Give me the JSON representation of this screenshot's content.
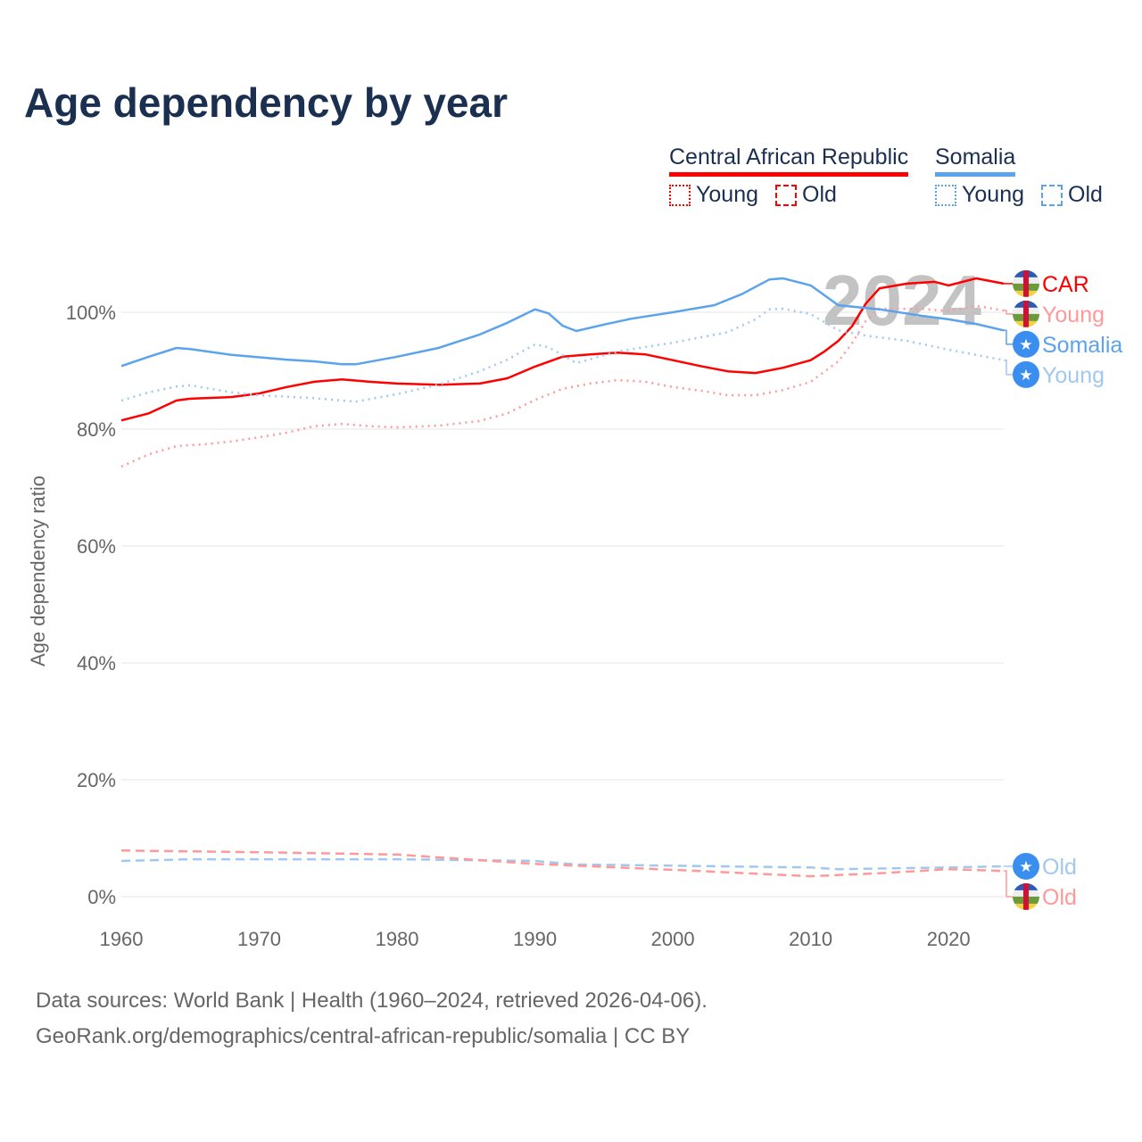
{
  "title": "Age dependency by year",
  "legend": {
    "countries": [
      {
        "name": "Central African Republic",
        "color": "#ff0000",
        "young_label": "Young",
        "old_label": "Old"
      },
      {
        "name": "Somalia",
        "color": "#5ba3ec",
        "young_label": "Young",
        "old_label": "Old"
      }
    ]
  },
  "footer": {
    "line1": "Data sources: World Bank | Health (1960–2024, retrieved 2026-04-06).",
    "line2": "GeoRank.org/demographics/central-african-republic/somalia | CC BY"
  },
  "chart_data": {
    "type": "line",
    "title": "Age dependency by year",
    "xlabel": "",
    "ylabel": "Age dependency ratio",
    "xlim": [
      1960,
      2024
    ],
    "ylim": [
      0,
      110
    ],
    "x_ticks": [
      "1960",
      "1970",
      "1980",
      "1990",
      "2000",
      "2010",
      "2020"
    ],
    "y_ticks": [
      "0%",
      "20%",
      "40%",
      "60%",
      "80%",
      "100%"
    ],
    "y_tick_values": [
      0,
      20,
      40,
      60,
      80,
      100
    ],
    "year_watermark": "2024",
    "grid": true,
    "series": [
      {
        "name": "CAR",
        "label": "CAR",
        "country": "car",
        "kind": "total",
        "color": "#ff0000",
        "points": [
          [
            1960,
            81.5
          ],
          [
            1962,
            82.7
          ],
          [
            1964,
            84.9
          ],
          [
            1965,
            85.2
          ],
          [
            1968,
            85.5
          ],
          [
            1970,
            86.1
          ],
          [
            1972,
            87.2
          ],
          [
            1974,
            88.1
          ],
          [
            1976,
            88.5
          ],
          [
            1978,
            88.1
          ],
          [
            1980,
            87.8
          ],
          [
            1983,
            87.6
          ],
          [
            1986,
            87.8
          ],
          [
            1988,
            88.7
          ],
          [
            1990,
            90.7
          ],
          [
            1992,
            92.4
          ],
          [
            1994,
            92.8
          ],
          [
            1996,
            93.1
          ],
          [
            1998,
            92.8
          ],
          [
            2000,
            91.8
          ],
          [
            2002,
            90.8
          ],
          [
            2004,
            89.9
          ],
          [
            2006,
            89.6
          ],
          [
            2008,
            90.5
          ],
          [
            2010,
            91.8
          ],
          [
            2011,
            93.3
          ],
          [
            2012,
            95.1
          ],
          [
            2013,
            97.6
          ],
          [
            2014,
            101.5
          ],
          [
            2015,
            104.1
          ],
          [
            2017,
            104.9
          ],
          [
            2019,
            105.2
          ],
          [
            2020,
            104.6
          ],
          [
            2022,
            105.8
          ],
          [
            2024,
            104.9
          ]
        ]
      },
      {
        "name": "CAR Young",
        "label": "Young",
        "country": "car",
        "kind": "young",
        "color": "#ff9999",
        "points": [
          [
            1960,
            73.6
          ],
          [
            1962,
            75.7
          ],
          [
            1964,
            77.1
          ],
          [
            1966,
            77.4
          ],
          [
            1968,
            77.9
          ],
          [
            1970,
            78.6
          ],
          [
            1972,
            79.4
          ],
          [
            1974,
            80.5
          ],
          [
            1976,
            80.9
          ],
          [
            1978,
            80.5
          ],
          [
            1980,
            80.3
          ],
          [
            1983,
            80.6
          ],
          [
            1986,
            81.4
          ],
          [
            1988,
            82.7
          ],
          [
            1990,
            85.0
          ],
          [
            1992,
            86.9
          ],
          [
            1994,
            87.8
          ],
          [
            1996,
            88.4
          ],
          [
            1998,
            88.1
          ],
          [
            2000,
            87.2
          ],
          [
            2002,
            86.6
          ],
          [
            2004,
            85.8
          ],
          [
            2006,
            85.8
          ],
          [
            2008,
            86.7
          ],
          [
            2010,
            88.1
          ],
          [
            2012,
            91.6
          ],
          [
            2013,
            94.7
          ],
          [
            2014,
            98.5
          ],
          [
            2015,
            100.6
          ],
          [
            2018,
            100.6
          ],
          [
            2020,
            100.2
          ],
          [
            2022,
            101.1
          ],
          [
            2024,
            100.3
          ]
        ]
      },
      {
        "name": "Somalia",
        "label": "Somalia",
        "country": "som",
        "kind": "total",
        "color": "#5ba3ec",
        "points": [
          [
            1960,
            90.8
          ],
          [
            1962,
            92.4
          ],
          [
            1964,
            93.9
          ],
          [
            1965,
            93.7
          ],
          [
            1968,
            92.7
          ],
          [
            1972,
            91.9
          ],
          [
            1974,
            91.6
          ],
          [
            1976,
            91.1
          ],
          [
            1977,
            91.1
          ],
          [
            1980,
            92.4
          ],
          [
            1983,
            93.9
          ],
          [
            1986,
            96.2
          ],
          [
            1988,
            98.2
          ],
          [
            1990,
            100.5
          ],
          [
            1991,
            99.8
          ],
          [
            1992,
            97.7
          ],
          [
            1993,
            96.8
          ],
          [
            1995,
            97.9
          ],
          [
            1997,
            98.9
          ],
          [
            2000,
            100.0
          ],
          [
            2003,
            101.2
          ],
          [
            2005,
            103.1
          ],
          [
            2007,
            105.6
          ],
          [
            2008,
            105.8
          ],
          [
            2010,
            104.6
          ],
          [
            2012,
            101.2
          ],
          [
            2015,
            100.5
          ],
          [
            2018,
            99.4
          ],
          [
            2020,
            98.8
          ],
          [
            2022,
            98.0
          ],
          [
            2024,
            96.9
          ]
        ]
      },
      {
        "name": "Somalia Young",
        "label": "Young",
        "country": "som",
        "kind": "young",
        "color": "#a0c8f0",
        "points": [
          [
            1960,
            84.9
          ],
          [
            1962,
            86.3
          ],
          [
            1964,
            87.3
          ],
          [
            1965,
            87.5
          ],
          [
            1968,
            86.3
          ],
          [
            1970,
            85.8
          ],
          [
            1974,
            85.3
          ],
          [
            1977,
            84.7
          ],
          [
            1980,
            86.0
          ],
          [
            1983,
            87.6
          ],
          [
            1986,
            89.9
          ],
          [
            1988,
            91.9
          ],
          [
            1990,
            94.5
          ],
          [
            1991,
            94.0
          ],
          [
            1993,
            91.3
          ],
          [
            1996,
            93.3
          ],
          [
            2000,
            94.8
          ],
          [
            2004,
            96.6
          ],
          [
            2006,
            98.8
          ],
          [
            2007,
            100.5
          ],
          [
            2008,
            100.6
          ],
          [
            2010,
            99.7
          ],
          [
            2012,
            96.9
          ],
          [
            2014,
            96.0
          ],
          [
            2017,
            95.1
          ],
          [
            2020,
            93.6
          ],
          [
            2024,
            91.8
          ]
        ]
      },
      {
        "name": "Somalia Old",
        "label": "Old",
        "country": "som",
        "kind": "old",
        "color": "#a0c8f0",
        "points": [
          [
            1960,
            6.1
          ],
          [
            1965,
            6.4
          ],
          [
            1980,
            6.4
          ],
          [
            1990,
            6.1
          ],
          [
            1993,
            5.5
          ],
          [
            2000,
            5.3
          ],
          [
            2010,
            5.0
          ],
          [
            2012,
            4.7
          ],
          [
            2020,
            5.0
          ],
          [
            2024,
            5.2
          ]
        ]
      },
      {
        "name": "CAR Old",
        "label": "Old",
        "country": "car",
        "kind": "old",
        "color": "#ff9999",
        "points": [
          [
            1960,
            7.9
          ],
          [
            1970,
            7.6
          ],
          [
            1980,
            7.2
          ],
          [
            1990,
            5.6
          ],
          [
            2000,
            4.6
          ],
          [
            2010,
            3.5
          ],
          [
            2015,
            4.0
          ],
          [
            2020,
            4.7
          ],
          [
            2024,
            4.4
          ]
        ]
      }
    ]
  }
}
